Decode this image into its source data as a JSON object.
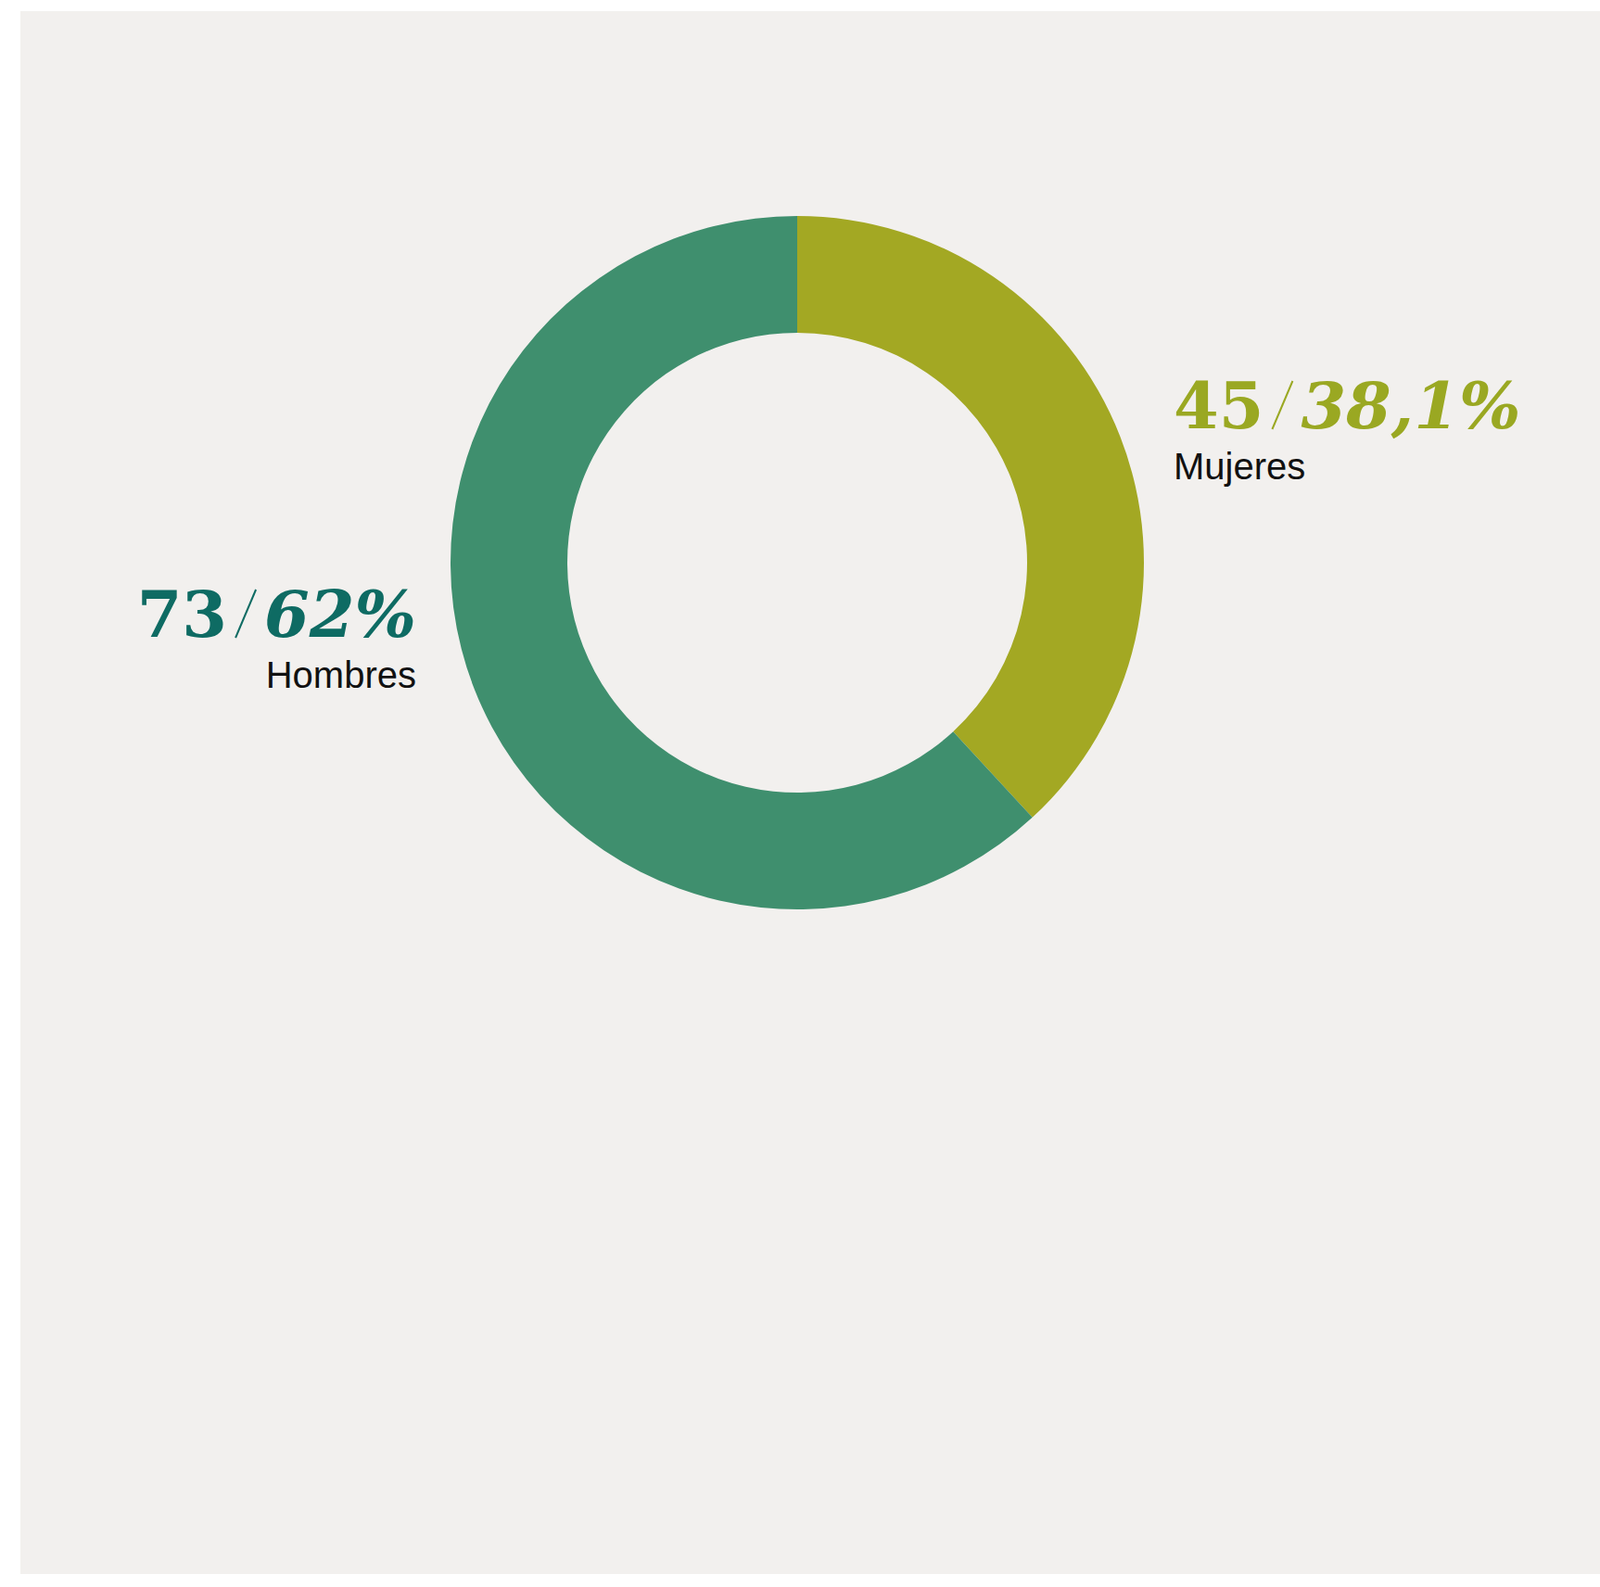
{
  "chart_data": {
    "type": "pie",
    "categories": [
      "Mujeres",
      "Hombres"
    ],
    "values": [
      45,
      73
    ],
    "percentages": [
      38.1,
      62
    ],
    "percentage_labels": [
      "38,1%",
      "62%"
    ],
    "colors": [
      "#a3a823",
      "#3f8f6e"
    ],
    "data_labels": true
  }
}
